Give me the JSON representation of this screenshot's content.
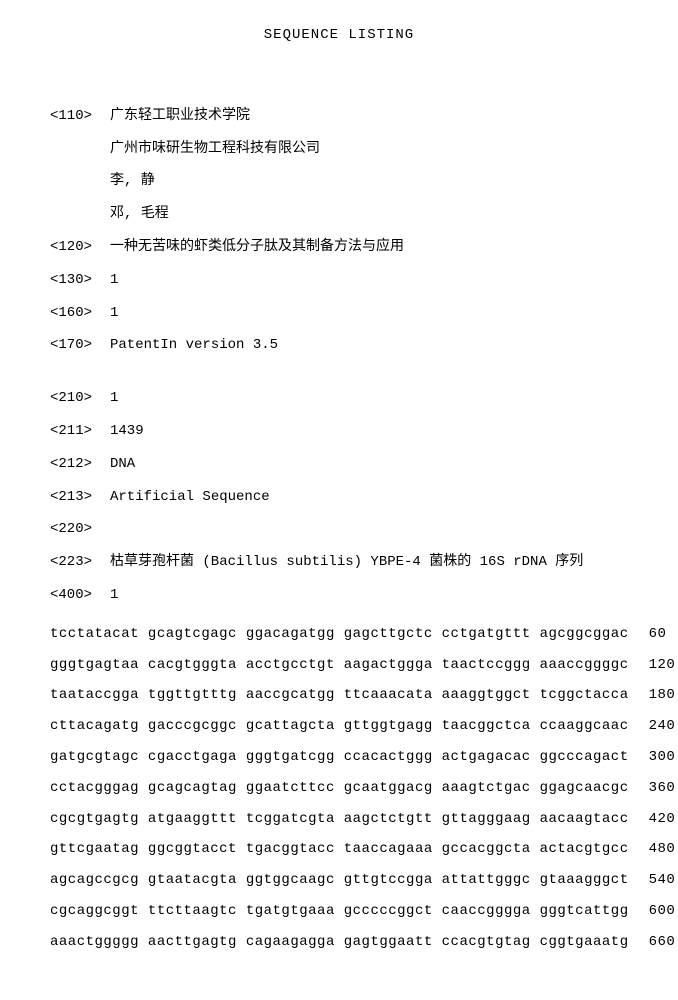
{
  "title": "SEQUENCE LISTING",
  "headers": {
    "h110_tag": "<110>",
    "h110_lines": [
      "广东轻工职业技术学院",
      "广州市味研生物工程科技有限公司",
      "李, 静",
      "邓, 毛程"
    ],
    "h120_tag": "<120>",
    "h120_value": "一种无苦味的虾类低分子肽及其制备方法与应用",
    "h130_tag": "<130>",
    "h130_value": "1",
    "h160_tag": "<160>",
    "h160_value": "1",
    "h170_tag": "<170>",
    "h170_value": "PatentIn version 3.5",
    "h210_tag": "<210>",
    "h210_value": "1",
    "h211_tag": "<211>",
    "h211_value": "1439",
    "h212_tag": "<212>",
    "h212_value": "DNA",
    "h213_tag": "<213>",
    "h213_value": "Artificial Sequence",
    "h220_tag": "<220>",
    "h220_value": "",
    "h223_tag": "<223>",
    "h223_value": "枯草芽孢杆菌 (Bacillus subtilis) YBPE-4 菌株的 16S rDNA 序列",
    "h400_tag": "<400>",
    "h400_value": "1"
  },
  "sequence": [
    {
      "text": "tcctatacat gcagtcgagc ggacagatgg gagcttgctc cctgatgttt agcggcggac",
      "num": "60"
    },
    {
      "text": "gggtgagtaa cacgtgggta acctgcctgt aagactggga taactccggg aaaccggggc",
      "num": "120"
    },
    {
      "text": "taataccgga tggttgtttg aaccgcatgg ttcaaacata aaaggtggct tcggctacca",
      "num": "180"
    },
    {
      "text": "cttacagatg gacccgcggc gcattagcta gttggtgagg taacggctca ccaaggcaac",
      "num": "240"
    },
    {
      "text": "gatgcgtagc cgacctgaga gggtgatcgg ccacactggg actgagacac ggcccagact",
      "num": "300"
    },
    {
      "text": "cctacgggag gcagcagtag ggaatcttcc gcaatggacg aaagtctgac ggagcaacgc",
      "num": "360"
    },
    {
      "text": "cgcgtgagtg atgaaggttt tcggatcgta aagctctgtt gttagggaag aacaagtacc",
      "num": "420"
    },
    {
      "text": "gttcgaatag ggcggtacct tgacggtacc taaccagaaa gccacggcta actacgtgcc",
      "num": "480"
    },
    {
      "text": "agcagccgcg gtaatacgta ggtggcaagc gttgtccgga attattgggc gtaaagggct",
      "num": "540"
    },
    {
      "text": "cgcaggcggt ttcttaagtc tgatgtgaaa gcccccggct caaccgggga gggtcattgg",
      "num": "600"
    },
    {
      "text": "aaactggggg aacttgagtg cagaagagga gagtggaatt ccacgtgtag cggtgaaatg",
      "num": "660"
    }
  ],
  "colors": {
    "background": "#ffffff",
    "text": "#000000"
  }
}
